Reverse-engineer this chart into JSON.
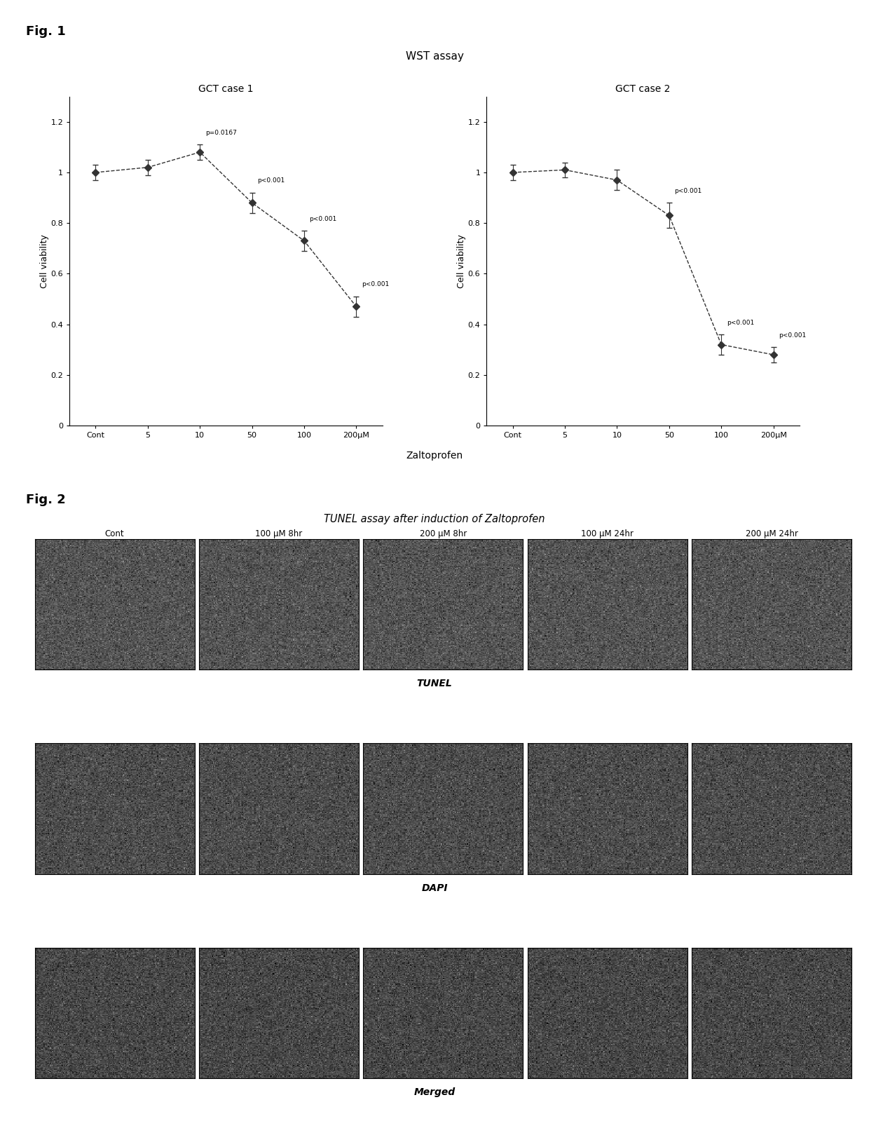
{
  "fig1_title": "WST assay",
  "fig_label1": "Fig. 1",
  "fig_label2": "Fig. 2",
  "plot1_title": "GCT case 1",
  "plot2_title": "GCT case 2",
  "xlabel": "Zaltoprofen",
  "ylabel1": "Cell viability",
  "ylabel2": "Cell viability",
  "xtick_labels": [
    "Cont",
    "5",
    "10",
    "50",
    "100",
    "200μM"
  ],
  "case1_y": [
    1.0,
    1.02,
    1.08,
    0.88,
    0.73,
    0.47
  ],
  "case2_y": [
    1.0,
    1.01,
    0.97,
    0.83,
    0.32,
    0.28
  ],
  "case1_errors": [
    0.03,
    0.03,
    0.03,
    0.04,
    0.04,
    0.04
  ],
  "case2_errors": [
    0.03,
    0.03,
    0.04,
    0.05,
    0.04,
    0.03
  ],
  "case1_pvalues": [
    "",
    "",
    "p=0.0167",
    "p<0.001",
    "p<0.001",
    "p<0.001"
  ],
  "case2_pvalues": [
    "",
    "",
    "",
    "p<0.001",
    "p<0.001",
    "p<0.001"
  ],
  "ylim": [
    0,
    1.3
  ],
  "yticks": [
    0,
    0.2,
    0.4,
    0.6,
    0.8,
    1.0,
    1.2
  ],
  "line_color": "#333333",
  "marker": "D",
  "marker_size": 5,
  "line_style": "--",
  "background_color": "#ffffff",
  "fig2_title": "TUNEL assay after induction of Zaltoprofen",
  "col_labels": [
    "Cont",
    "100 μM 8hr",
    "200 μM 8hr",
    "100 μM 24hr",
    "200 μM 24hr"
  ],
  "row_labels": [
    "TUNEL",
    "DAPI",
    "Merged"
  ],
  "panel_gray_rows": [
    0.33,
    0.3,
    0.28
  ],
  "panel_noise_scale": 0.07
}
